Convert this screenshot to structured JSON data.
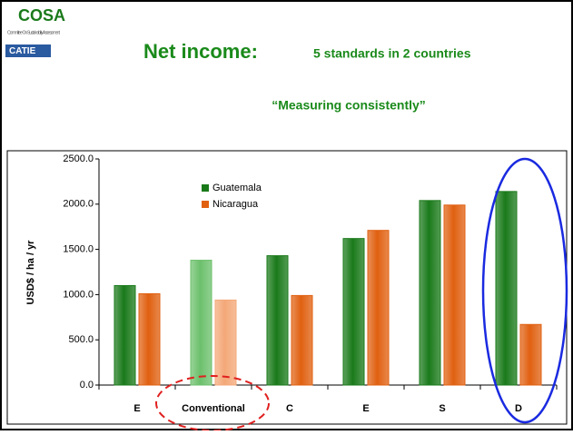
{
  "logo": {
    "name": "COSA",
    "tagline": "Committee On Sustainability Assessment",
    "partner": "CATIE"
  },
  "chart_data": {
    "type": "bar",
    "title": "Net income:",
    "subtitle_inline": "5 standards in 2 countries",
    "subtitle": "“Measuring consistently”",
    "y_label": "USD$ / ha / yr",
    "categories": [
      "E",
      "Conventional",
      "C",
      "E",
      "S",
      "D"
    ],
    "series": [
      {
        "name": "Guatemala",
        "color": "#1a7a1a",
        "colors": [
          "#1a7a1a",
          "#6cc06c",
          "#1a7a1a",
          "#1a7a1a",
          "#1a7a1a",
          "#1a7a1a"
        ],
        "values": [
          1100,
          1380,
          1430,
          1620,
          2040,
          2140
        ]
      },
      {
        "name": "Nicaragua",
        "color": "#e06010",
        "colors": [
          "#e06010",
          "#f4a878",
          "#e06010",
          "#e06010",
          "#e06010",
          "#e06010"
        ],
        "values": [
          1010,
          940,
          990,
          1710,
          1990,
          670
        ]
      }
    ],
    "ylim": [
      0,
      2500
    ],
    "yticks": [
      {
        "value": 0,
        "label": "0.0"
      },
      {
        "value": 500,
        "label": "500.0"
      },
      {
        "value": 1000,
        "label": "1000.0"
      },
      {
        "value": 1500,
        "label": "1500.0"
      },
      {
        "value": 2000,
        "label": "2000.0"
      },
      {
        "value": 2500,
        "label": "2500.0"
      }
    ],
    "legend": "upper left"
  }
}
